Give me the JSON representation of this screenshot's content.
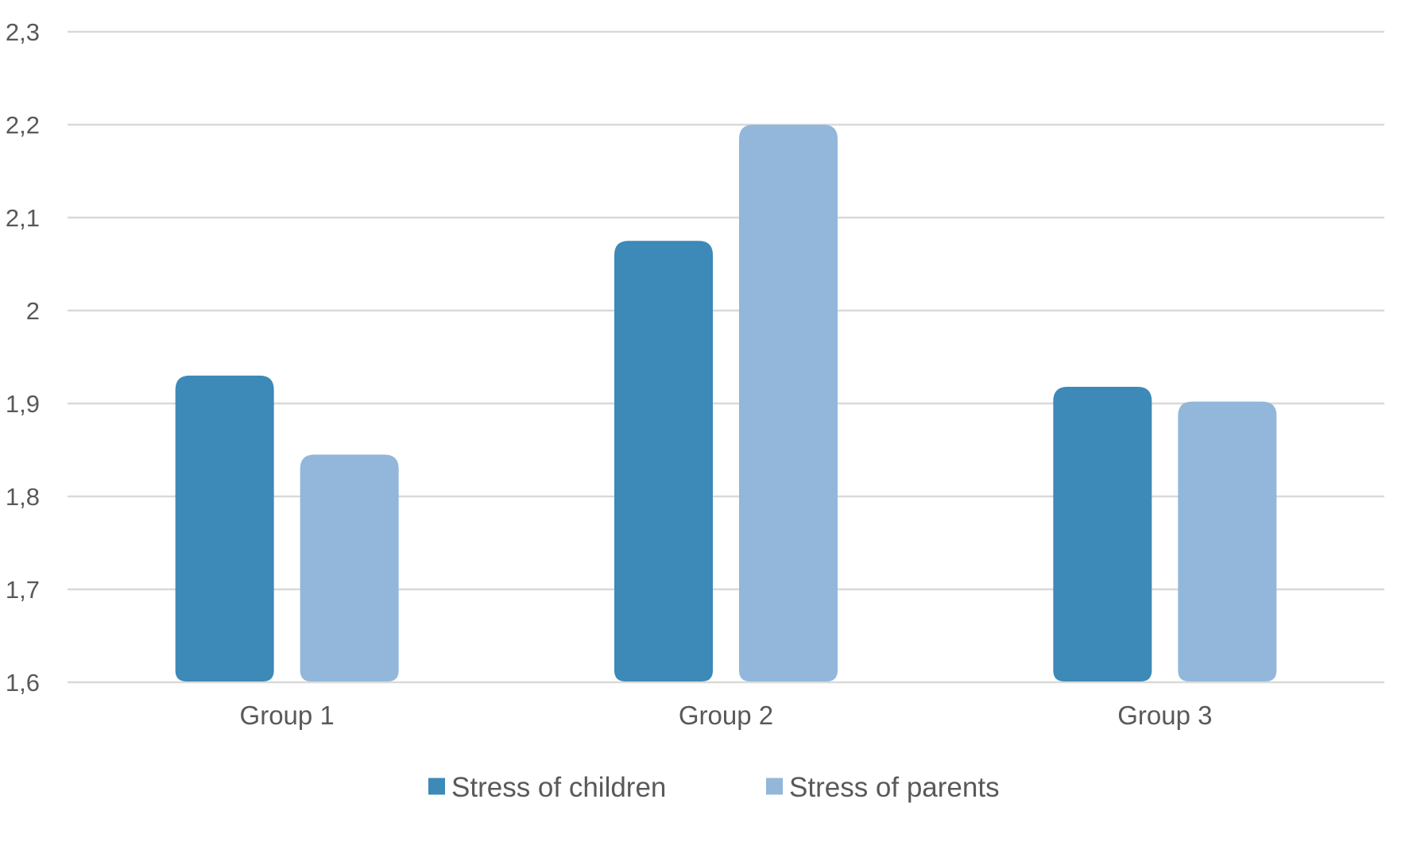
{
  "chart_data": {
    "type": "bar",
    "categories": [
      "Group 1",
      "Group 2",
      "Group 3"
    ],
    "series": [
      {
        "name": "Stress of children",
        "color": "#3d89b8",
        "values": [
          1.93,
          2.075,
          1.918
        ]
      },
      {
        "name": "Stress of parents",
        "color": "#92b7da",
        "values": [
          1.845,
          2.2,
          1.902
        ]
      }
    ],
    "ylim": [
      1.6,
      2.3
    ],
    "yticks": [
      1.6,
      1.7,
      1.8,
      1.9,
      2.0,
      2.1,
      2.2,
      2.3
    ],
    "ytick_labels": [
      "1,6",
      "1,7",
      "1,8",
      "1,9",
      "2",
      "2,1",
      "2,2",
      "2,3"
    ],
    "title": "",
    "xlabel": "",
    "ylabel": "",
    "grid": true,
    "gridline_color": "#d9d9d9",
    "text_color": "#595959",
    "legend_position": "bottom"
  }
}
